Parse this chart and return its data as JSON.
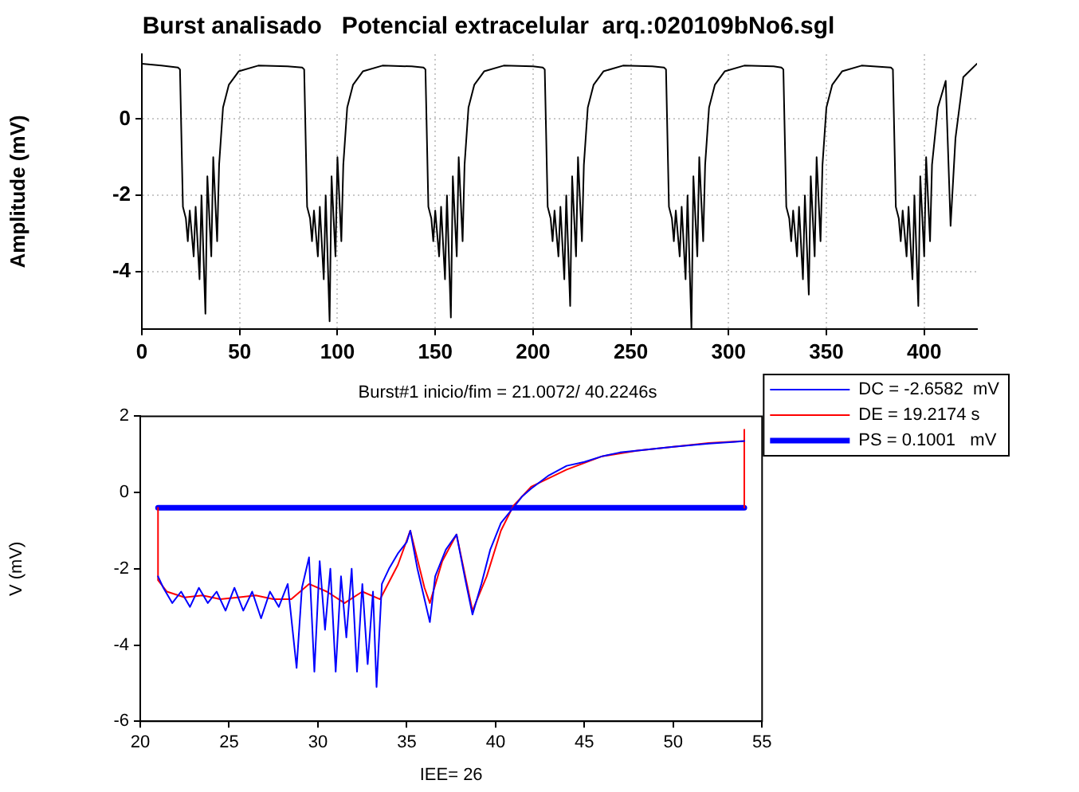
{
  "chart_data": [
    {
      "type": "line",
      "title": "Burst analisado   Potencial extracelular  arq.:020109bNo6.sgl",
      "ylabel": "Amplitude (mV)",
      "xlim": [
        0,
        427
      ],
      "ylim": [
        -5.5,
        1.7
      ],
      "xticks": [
        0,
        50,
        100,
        150,
        200,
        250,
        300,
        350,
        400
      ],
      "yticks": [
        -4,
        -2,
        0
      ],
      "grid": true,
      "legend": false,
      "series": [
        {
          "color": "#000000",
          "x": [
            0,
            10,
            18.5,
            19.5,
            21,
            22.5,
            23.5,
            24.5,
            26.5,
            27.5,
            29.5,
            30.5,
            32.5,
            33.5,
            35.5,
            36.5,
            38.5,
            39.5,
            41.5,
            44.5,
            49.5,
            59.5,
            74.5,
            82,
            83,
            84.5,
            86,
            87,
            88,
            90,
            91,
            93,
            94,
            96,
            97,
            99,
            100,
            102,
            103,
            105,
            108,
            113,
            123,
            138,
            144,
            145,
            146.5,
            148,
            149,
            150,
            152,
            153,
            155,
            156,
            158,
            159,
            161,
            162,
            164,
            165,
            167,
            170,
            175,
            185,
            200,
            205,
            206,
            207.5,
            209,
            210,
            211,
            213,
            214,
            216,
            217,
            219,
            220,
            222,
            223,
            225,
            226,
            228,
            231,
            236,
            246,
            261,
            267,
            268,
            269.5,
            271,
            272,
            273,
            275,
            276,
            278,
            279,
            281,
            282,
            284,
            285,
            287,
            288,
            290,
            293,
            298,
            308,
            323,
            327,
            328,
            329.5,
            331,
            332,
            333,
            335,
            336,
            338,
            339,
            341,
            342,
            344,
            345,
            347,
            348,
            350,
            353,
            358,
            368,
            383,
            384,
            385.5,
            387,
            388,
            389,
            391,
            392,
            394,
            395,
            397,
            398,
            400,
            401,
            403,
            404,
            407,
            411,
            413.5,
            416,
            420,
            427
          ],
          "values": [
            1.45,
            1.4,
            1.35,
            1.3,
            -2.3,
            -2.6,
            -3.2,
            -2.4,
            -3.6,
            -2.3,
            -4.2,
            -2.0,
            -5.1,
            -1.5,
            -3.6,
            -1.0,
            -3.2,
            -1.2,
            0.3,
            0.9,
            1.25,
            1.4,
            1.38,
            1.35,
            1.3,
            -2.3,
            -2.6,
            -3.2,
            -2.4,
            -3.6,
            -2.3,
            -4.2,
            -2.0,
            -5.3,
            -1.5,
            -3.6,
            -1.0,
            -3.2,
            -1.2,
            0.3,
            0.9,
            1.25,
            1.4,
            1.38,
            1.35,
            1.3,
            -2.3,
            -2.6,
            -3.2,
            -2.4,
            -3.6,
            -2.3,
            -4.2,
            -2.0,
            -5.2,
            -1.5,
            -3.6,
            -1.0,
            -3.2,
            -1.2,
            0.3,
            0.9,
            1.25,
            1.4,
            1.38,
            1.35,
            1.3,
            -2.3,
            -2.6,
            -3.2,
            -2.4,
            -3.6,
            -2.3,
            -4.2,
            -2.0,
            -4.9,
            -1.5,
            -3.6,
            -1.0,
            -3.2,
            -1.2,
            0.3,
            0.9,
            1.25,
            1.4,
            1.38,
            1.35,
            1.3,
            -2.3,
            -2.6,
            -3.2,
            -2.4,
            -3.6,
            -2.3,
            -4.2,
            -2.0,
            -5.5,
            -1.5,
            -3.6,
            -1.0,
            -3.2,
            -1.2,
            0.3,
            0.9,
            1.25,
            1.4,
            1.38,
            1.35,
            1.3,
            -2.3,
            -2.6,
            -3.2,
            -2.4,
            -3.6,
            -2.3,
            -4.2,
            -2.0,
            -4.6,
            -1.5,
            -3.6,
            -1.0,
            -3.2,
            -1.2,
            0.3,
            0.9,
            1.25,
            1.4,
            1.35,
            1.3,
            -2.3,
            -2.6,
            -3.2,
            -2.4,
            -3.6,
            -2.3,
            -4.2,
            -2.0,
            -4.9,
            -1.5,
            -3.6,
            -1.0,
            -3.2,
            -1.2,
            0.3,
            1.0,
            -2.8,
            -0.5,
            1.1,
            1.45
          ]
        }
      ]
    },
    {
      "type": "line",
      "title": "Burst#1 inicio/fim = 21.0072/ 40.2246s",
      "xlabel": "IEE= 26",
      "ylabel": "V (mV)",
      "xlim": [
        20,
        55
      ],
      "ylim": [
        -6,
        2
      ],
      "xticks": [
        20,
        25,
        30,
        35,
        40,
        45,
        50,
        55
      ],
      "yticks": [
        -6,
        -4,
        -2,
        0,
        2
      ],
      "legend": "right",
      "series": [
        {
          "name": "DC = -2.6582  mV",
          "color": "#0000ff",
          "x": [
            21,
            21.3,
            21.8,
            22.3,
            22.8,
            23.3,
            23.8,
            24.3,
            24.8,
            25.3,
            25.8,
            26.3,
            26.8,
            27.3,
            27.8,
            28.3,
            28.8,
            29.1,
            29.5,
            29.8,
            30.1,
            30.4,
            30.7,
            31,
            31.3,
            31.6,
            31.9,
            32.2,
            32.5,
            32.8,
            33.1,
            33.3,
            33.6,
            34,
            34.5,
            35,
            35.2,
            35.6,
            36,
            36.3,
            36.6,
            37.2,
            37.8,
            38.3,
            38.7,
            39.2,
            39.7,
            40.3,
            41,
            41.5,
            42,
            43,
            44,
            45,
            46,
            47,
            48,
            50,
            52,
            53.5,
            54
          ],
          "values": [
            -2.2,
            -2.5,
            -2.9,
            -2.6,
            -3.0,
            -2.5,
            -2.9,
            -2.6,
            -3.1,
            -2.5,
            -3.1,
            -2.6,
            -3.3,
            -2.6,
            -3.0,
            -2.4,
            -4.6,
            -2.5,
            -1.7,
            -4.7,
            -1.8,
            -3.6,
            -2.0,
            -4.7,
            -2.2,
            -3.8,
            -2.0,
            -4.7,
            -2.4,
            -4.5,
            -2.6,
            -5.1,
            -2.4,
            -2.0,
            -1.6,
            -1.3,
            -1.0,
            -2.0,
            -2.8,
            -3.4,
            -2.2,
            -1.5,
            -1.1,
            -2.3,
            -3.2,
            -2.4,
            -1.5,
            -0.8,
            -0.4,
            -0.1,
            0.1,
            0.45,
            0.7,
            0.8,
            0.95,
            1.05,
            1.1,
            1.2,
            1.28,
            1.33,
            1.35
          ]
        },
        {
          "name": "DE = 19.2174 s",
          "color": "#ff0000",
          "x": [
            21,
            21,
            21.5,
            22.5,
            23.5,
            24.5,
            25.5,
            26.5,
            27.5,
            28.5,
            29.5,
            30.5,
            31.5,
            32.5,
            33.5,
            34.5,
            35.2,
            36,
            36.3,
            37,
            37.8,
            38.7,
            39.5,
            40.3,
            41,
            42,
            44,
            46,
            48,
            50,
            52,
            54,
            54,
            54
          ],
          "values": [
            -0.4,
            -2.3,
            -2.6,
            -2.75,
            -2.7,
            -2.8,
            -2.75,
            -2.7,
            -2.8,
            -2.8,
            -2.4,
            -2.6,
            -2.9,
            -2.6,
            -2.8,
            -1.9,
            -1.0,
            -2.5,
            -2.9,
            -1.8,
            -1.1,
            -3.1,
            -2.2,
            -1.0,
            -0.35,
            0.15,
            0.6,
            0.95,
            1.1,
            1.2,
            1.3,
            1.35,
            1.65,
            -0.4
          ]
        },
        {
          "name": "PS = 0.1001   mV",
          "color": "#0000ff",
          "x": [
            21,
            54
          ],
          "values": [
            -0.4,
            -0.4
          ]
        }
      ]
    }
  ]
}
